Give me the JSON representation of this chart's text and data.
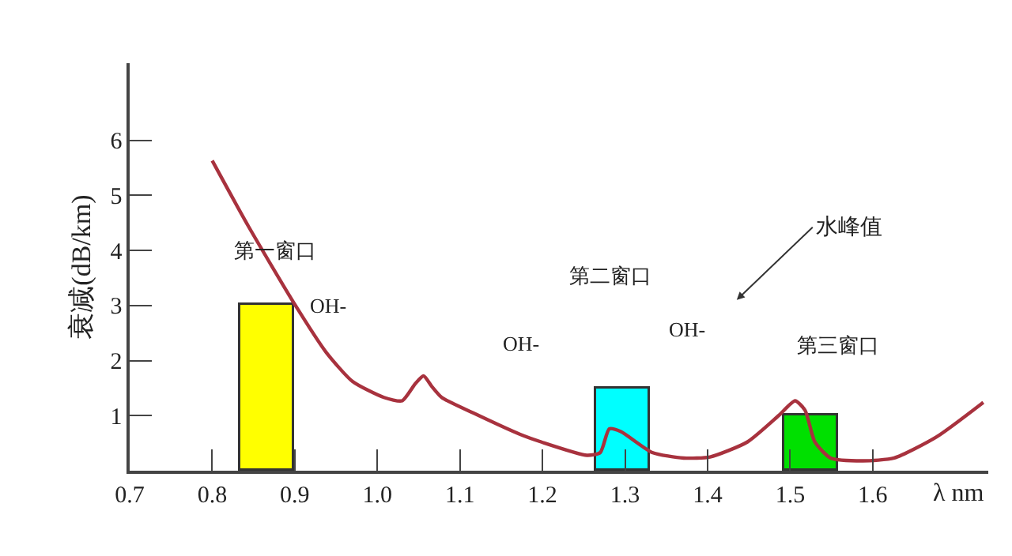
{
  "chart_data": {
    "type": "line",
    "xlabel": "λ nm",
    "ylabel": "衰减(dB/km)",
    "xlim": [
      0.7,
      1.74
    ],
    "ylim": [
      0,
      7.4
    ],
    "xticks": [
      {
        "value": 0.7,
        "label": "0.7"
      },
      {
        "value": 0.8,
        "label": "0.8"
      },
      {
        "value": 0.9,
        "label": "0.9"
      },
      {
        "value": 1.0,
        "label": "1.0"
      },
      {
        "value": 1.1,
        "label": "1.1"
      },
      {
        "value": 1.2,
        "label": "1.2"
      },
      {
        "value": 1.3,
        "label": "1.3"
      },
      {
        "value": 1.4,
        "label": "1.4"
      },
      {
        "value": 1.5,
        "label": "1.5"
      },
      {
        "value": 1.6,
        "label": "1.6"
      }
    ],
    "yticks": [
      1,
      2,
      3,
      4,
      5,
      6
    ],
    "series": [
      {
        "type": "bar",
        "x": [
          0.8675,
          1.2975,
          1.525
        ],
        "values": [
          3,
          1.5,
          1
        ],
        "colors": [
          "#ffff00",
          "#00ffff",
          "#00e000"
        ]
      },
      {
        "color": "#a8323e",
        "x": [
          0.8,
          0.843,
          0.9,
          0.938,
          0.97,
          1.008,
          1.03,
          1.046,
          1.056,
          1.066,
          1.078,
          1.116,
          1.173,
          1.199,
          1.254,
          1.27,
          1.281,
          1.295,
          1.333,
          1.371,
          1.403,
          1.448,
          1.486,
          1.506,
          1.518,
          1.53,
          1.549,
          1.588,
          1.626,
          1.677,
          1.734
        ],
        "values": [
          5.63,
          4.46,
          3.02,
          2.15,
          1.62,
          1.33,
          1.27,
          1.58,
          1.72,
          1.53,
          1.33,
          1.05,
          0.66,
          0.52,
          0.28,
          0.33,
          0.76,
          0.71,
          0.33,
          0.23,
          0.25,
          0.52,
          1.0,
          1.27,
          1.1,
          0.52,
          0.23,
          0.18,
          0.23,
          0.61,
          1.24
        ]
      }
    ],
    "annotations": [
      "第一窗口",
      "OH-",
      "OH-",
      "第二窗口",
      "OH-",
      "第三窗口",
      "水峰值"
    ]
  }
}
